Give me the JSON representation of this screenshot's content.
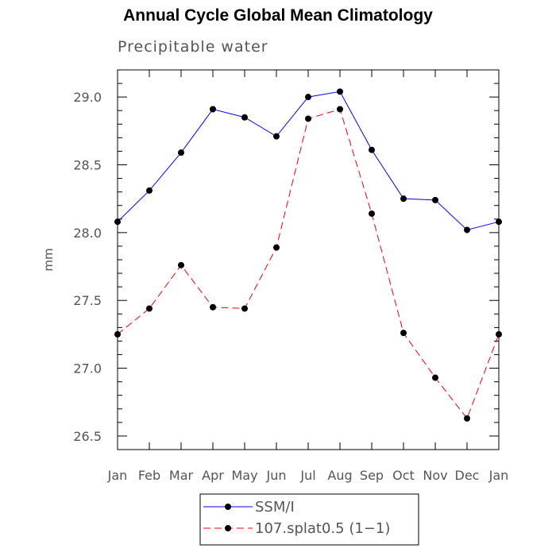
{
  "chart_data": {
    "type": "line",
    "title": "Annual Cycle Global Mean Climatology",
    "subtitle": "Precipitable water",
    "xlabel": "",
    "ylabel": "mm",
    "categories": [
      "Jan",
      "Feb",
      "Mar",
      "Apr",
      "May",
      "Jun",
      "Jul",
      "Aug",
      "Sep",
      "Oct",
      "Nov",
      "Dec",
      "Jan"
    ],
    "ylim": [
      26.4,
      29.2
    ],
    "yticks": [
      26.5,
      27.0,
      27.5,
      28.0,
      28.5,
      29.0
    ],
    "ytick_labels": [
      "26.5",
      "27.0",
      "27.5",
      "28.0",
      "28.5",
      "29.0"
    ],
    "grid": false,
    "legend_position": "bottom",
    "series": [
      {
        "name": "SSM/I",
        "color": "#0000ff",
        "line_style": "solid",
        "values": [
          28.08,
          28.31,
          28.59,
          28.91,
          28.85,
          28.71,
          29.0,
          29.04,
          28.61,
          28.25,
          28.24,
          28.02,
          28.08
        ]
      },
      {
        "name": "107.splat0.5 (1−1)",
        "color": "#ff0000",
        "line_style": "dashed",
        "values": [
          27.25,
          27.44,
          27.76,
          27.45,
          27.44,
          27.89,
          28.84,
          28.91,
          28.14,
          27.26,
          26.93,
          26.63,
          27.25
        ]
      }
    ]
  }
}
